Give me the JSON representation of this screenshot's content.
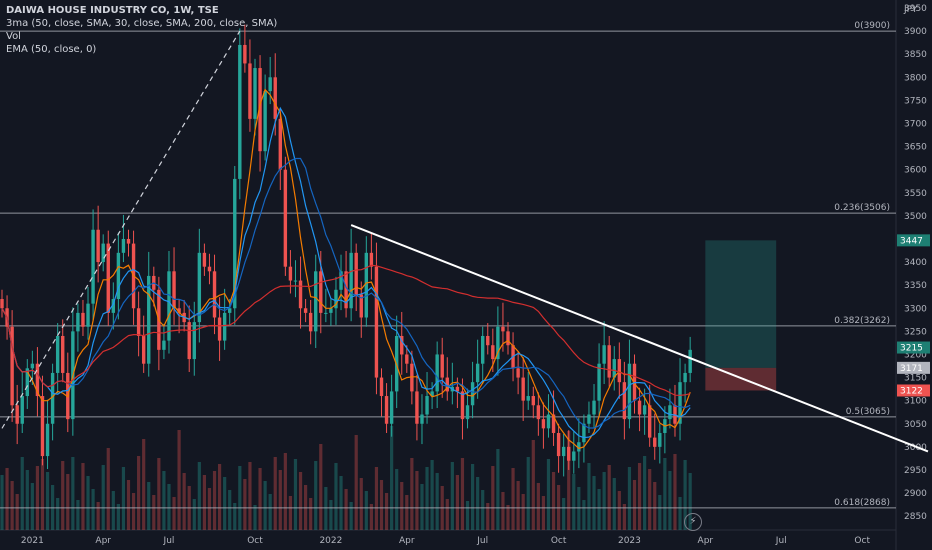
{
  "legend": {
    "title": "DAIWA HOUSE INDUSTRY CO, 1W, TSE",
    "line2": "3ma (50, close, SMA, 30, close, SMA, 200, close, SMA)",
    "line3": "Vol",
    "line4": "EMA (50, close, 0)"
  },
  "currency": "JPY",
  "colors": {
    "background": "#131722",
    "up": "#26a69a",
    "down": "#ef5350",
    "ma_fast": "#f57c00",
    "ma_mid": "#2196f3",
    "ma_slow": "#d32f2f",
    "ema": "#1565c0",
    "trendline": "#ffffff",
    "fib": "#b2b5be"
  },
  "chart_data": {
    "type": "candlestick",
    "y_axis": {
      "range": [
        2820,
        3950
      ],
      "ticks": [
        "3950",
        "3900",
        "3850",
        "3800",
        "3750",
        "3700",
        "3650",
        "3600",
        "3550",
        "3500",
        "3450",
        "3400",
        "3350",
        "3300",
        "3250",
        "3200",
        "3150",
        "3100",
        "3050",
        "3000",
        "2950",
        "2900",
        "2850"
      ]
    },
    "x_axis": {
      "ticks": [
        "2021",
        "Apr",
        "Jul",
        "Oct",
        "2022",
        "Apr",
        "Jul",
        "Oct",
        "2023",
        "Apr",
        "Jul",
        "Oct"
      ]
    },
    "fib_levels": [
      {
        "label": "0(3900)",
        "value": 3900
      },
      {
        "label": "0.236(3506)",
        "value": 3506
      },
      {
        "label": "0.382(3262)",
        "value": 3262
      },
      {
        "label": "0.5(3065)",
        "value": 3065
      },
      {
        "label": "0.618(2868)",
        "value": 2868
      }
    ],
    "price_tags": [
      {
        "label": "3447",
        "value": 3447,
        "color": "#1e7f73"
      },
      {
        "label": "3215",
        "value": 3215,
        "color": "#1e7f73"
      },
      {
        "label": "3171",
        "value": 3171,
        "color": "#b2b5be"
      },
      {
        "label": "3122",
        "value": 3122,
        "color": "#ef5350"
      }
    ],
    "trendline": {
      "from": {
        "week": 69,
        "price": 3480
      },
      "to": {
        "week": 183,
        "price": 2990
      }
    },
    "dashed_line": {
      "from": {
        "week": 0,
        "price": 3040
      },
      "to": {
        "week": 47,
        "price": 3900
      }
    },
    "position": {
      "start_week": 139,
      "end_week": 153,
      "entry": 3171,
      "target": 3447,
      "stop": 3122
    },
    "closes": [
      3300,
      3260,
      3090,
      3050,
      3110,
      3170,
      3180,
      3110,
      2980,
      3050,
      3160,
      3240,
      3160,
      3060,
      3250,
      3290,
      3260,
      3310,
      3470,
      3400,
      3440,
      3290,
      3320,
      3420,
      3450,
      3440,
      3300,
      3240,
      3180,
      3370,
      3340,
      3210,
      3230,
      3380,
      3300,
      3290,
      3270,
      3190,
      3270,
      3420,
      3390,
      3380,
      3280,
      3230,
      3290,
      3300,
      3580,
      3870,
      3830,
      3710,
      3820,
      3640,
      3770,
      3800,
      3710,
      3600,
      3390,
      3360,
      3360,
      3300,
      3290,
      3250,
      3380,
      3290,
      3290,
      3300,
      3340,
      3380,
      3300,
      3420,
      3330,
      3280,
      3420,
      3390,
      3150,
      3110,
      3050,
      3120,
      3240,
      3200,
      3180,
      3120,
      3050,
      3070,
      3110,
      3120,
      3200,
      3150,
      3120,
      3130,
      3120,
      3060,
      3090,
      3140,
      3180,
      3240,
      3220,
      3190,
      3260,
      3250,
      3220,
      3170,
      3150,
      3100,
      3110,
      3090,
      3060,
      3040,
      3070,
      3030,
      2980,
      3000,
      2970,
      2990,
      3010,
      3050,
      3070,
      3100,
      3180,
      3220,
      3150,
      3190,
      3140,
      3060,
      3180,
      3100,
      3070,
      3090,
      3020,
      3000,
      3030,
      3060,
      3090,
      3050,
      3140,
      3160,
      3210
    ],
    "series": [
      {
        "name": "3ma (50, close, SMA, 30, close, SMA, 200, close, SMA)",
        "values": []
      },
      {
        "name": "Vol",
        "values": []
      },
      {
        "name": "EMA (50, close, 0)",
        "values": []
      }
    ]
  }
}
